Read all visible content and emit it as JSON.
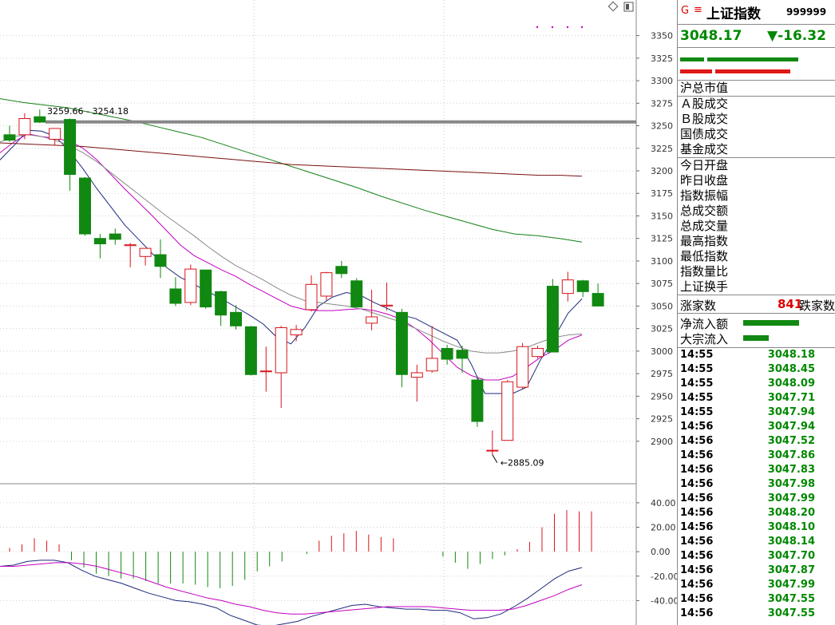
{
  "chart_data": [
    {
      "type": "candlestick",
      "ylim": [
        2860,
        3370
      ],
      "yticks": [
        2900,
        2925,
        2950,
        2975,
        3000,
        3025,
        3050,
        3075,
        3100,
        3125,
        3150,
        3175,
        3200,
        3225,
        3250,
        3275,
        3300,
        3325,
        3350
      ],
      "candles": [
        {
          "o": 3240,
          "h": 3250,
          "l": 3232,
          "c": 3234
        },
        {
          "o": 3240,
          "h": 3264,
          "l": 3235,
          "c": 3258
        },
        {
          "o": 3260,
          "h": 3268,
          "l": 3253,
          "c": 3254
        },
        {
          "o": 3235,
          "h": 3245,
          "l": 3228,
          "c": 3247
        },
        {
          "o": 3257,
          "h": 3258,
          "l": 3178,
          "c": 3196
        },
        {
          "o": 3192,
          "h": 3193,
          "l": 3128,
          "c": 3130
        },
        {
          "o": 3125,
          "h": 3130,
          "l": 3103,
          "c": 3119
        },
        {
          "o": 3130,
          "h": 3136,
          "l": 3118,
          "c": 3124
        },
        {
          "o": 3117,
          "h": 3120,
          "l": 3093,
          "c": 3118
        },
        {
          "o": 3105,
          "h": 3109,
          "l": 3095,
          "c": 3114
        },
        {
          "o": 3107,
          "h": 3124,
          "l": 3081,
          "c": 3094
        },
        {
          "o": 3069,
          "h": 3082,
          "l": 3050,
          "c": 3053
        },
        {
          "o": 3054,
          "h": 3096,
          "l": 3051,
          "c": 3091
        },
        {
          "o": 3090,
          "h": 3090,
          "l": 3047,
          "c": 3049
        },
        {
          "o": 3066,
          "h": 3067,
          "l": 3028,
          "c": 3040
        },
        {
          "o": 3043,
          "h": 3051,
          "l": 3024,
          "c": 3028
        },
        {
          "o": 3027,
          "h": 3028,
          "l": 2973,
          "c": 2974
        },
        {
          "o": 2978,
          "h": 3005,
          "l": 2955,
          "c": 2978
        },
        {
          "o": 2976,
          "h": 3028,
          "l": 2937,
          "c": 3026
        },
        {
          "o": 3018,
          "h": 3029,
          "l": 3011,
          "c": 3024
        },
        {
          "o": 3046,
          "h": 3084,
          "l": 3044,
          "c": 3074
        },
        {
          "o": 3061,
          "h": 3088,
          "l": 3056,
          "c": 3087
        },
        {
          "o": 3094,
          "h": 3100,
          "l": 3081,
          "c": 3086
        },
        {
          "o": 3078,
          "h": 3081,
          "l": 3049,
          "c": 3049
        },
        {
          "o": 3031,
          "h": 3068,
          "l": 3023,
          "c": 3038
        },
        {
          "o": 3050,
          "h": 3076,
          "l": 3045,
          "c": 3051
        },
        {
          "o": 3043,
          "h": 3047,
          "l": 2960,
          "c": 2974
        },
        {
          "o": 2971,
          "h": 2985,
          "l": 2944,
          "c": 2976
        },
        {
          "o": 2978,
          "h": 3028,
          "l": 2976,
          "c": 2992
        },
        {
          "o": 3003,
          "h": 3007,
          "l": 2985,
          "c": 2991
        },
        {
          "o": 3001,
          "h": 3006,
          "l": 2976,
          "c": 2992
        },
        {
          "o": 2968,
          "h": 2972,
          "l": 2916,
          "c": 2922
        },
        {
          "o": 2890,
          "h": 2912,
          "l": 2885.09,
          "c": 2890
        },
        {
          "o": 2901,
          "h": 2968,
          "l": 2901,
          "c": 2966
        },
        {
          "o": 2960,
          "h": 3009,
          "l": 2958,
          "c": 3005
        },
        {
          "o": 2994,
          "h": 3006,
          "l": 2992,
          "c": 3003
        },
        {
          "o": 3072,
          "h": 3080,
          "l": 2999,
          "c": 2999
        },
        {
          "o": 3064,
          "h": 3088,
          "l": 3055,
          "c": 3079
        },
        {
          "o": 3078,
          "h": 3079,
          "l": 3060,
          "c": 3066
        },
        {
          "o": 3064,
          "h": 3075,
          "l": 3050,
          "c": 3050
        }
      ],
      "ma_lines": [
        {
          "color": "#1c2a7c",
          "values": [
            3212,
            3228,
            3245,
            3244,
            3238,
            3222,
            3202,
            3180,
            3160,
            3140,
            3124,
            3108,
            3093,
            3082,
            3074,
            3066,
            3058,
            3049,
            3040,
            3030,
            3015,
            3008,
            3026,
            3050,
            3060,
            3065,
            3062,
            3054,
            3047,
            3040,
            3036,
            3028,
            3020,
            3012,
            2986,
            2953,
            2953,
            2953,
            2960,
            2990,
            3015,
            3042,
            3058
          ]
        },
        {
          "color": "#c200c2",
          "values": [
            3220,
            3232,
            3241,
            3238,
            3236,
            3233,
            3225,
            3212,
            3196,
            3180,
            3165,
            3150,
            3134,
            3118,
            3106,
            3098,
            3090,
            3083,
            3074,
            3066,
            3058,
            3050,
            3046,
            3045,
            3045,
            3046,
            3047,
            3045,
            3041,
            3035,
            3025,
            3012,
            2997,
            2982,
            2973,
            2968,
            2968,
            2972,
            2982,
            2993,
            3001,
            3012,
            3018
          ]
        },
        {
          "color": "#8a8a8a",
          "values": [
            3232,
            3238,
            3240,
            3238,
            3234,
            3228,
            3220,
            3210,
            3198,
            3186,
            3174,
            3162,
            3150,
            3139,
            3128,
            3116,
            3105,
            3095,
            3087,
            3079,
            3070,
            3062,
            3056,
            3054,
            3052,
            3050,
            3047,
            3042,
            3037,
            3032,
            3025,
            3018,
            3011,
            3005,
            3000,
            2998,
            2998,
            3000,
            3004,
            3010,
            3015,
            3018,
            3019
          ]
        },
        {
          "color": "#138013",
          "values": [
            3280,
            3276,
            3273,
            3270,
            3265,
            3260,
            3255,
            3249,
            3243,
            3237,
            3229,
            3221,
            3213,
            3205,
            3197,
            3189,
            3181,
            3172,
            3164,
            3156,
            3149,
            3142,
            3135,
            3130,
            3128,
            3125,
            3121
          ]
        },
        {
          "color": "#7a1010",
          "values": [
            3231,
            3230,
            3229,
            3228,
            3227,
            3225,
            3223,
            3221,
            3219,
            3217,
            3215,
            3213,
            3211,
            3209,
            3207,
            3206,
            3205,
            3204,
            3203,
            3202,
            3201,
            3200,
            3199,
            3198,
            3197,
            3196,
            3195,
            3195,
            3194
          ]
        }
      ],
      "hline": 3254.18,
      "annot_high": "3259.66 - 3254.18",
      "annot_low": "2885.09"
    },
    {
      "type": "bar",
      "ylim": [
        -60,
        53
      ],
      "yticks": [
        "40.00",
        "20.00",
        "0.00",
        "-20.00",
        "-40.00"
      ],
      "values": [
        3,
        6,
        11,
        9,
        6,
        -7,
        -13,
        -18,
        -20,
        -22,
        -22,
        -24,
        -26,
        -26,
        -26,
        -27,
        -29,
        -30,
        -28,
        -23,
        -16,
        -12,
        -8,
        0,
        -2,
        9,
        13,
        15,
        17,
        14,
        12,
        11,
        0,
        0,
        0,
        -4,
        -9,
        -14,
        -10,
        -6,
        -3,
        2,
        8,
        20,
        31,
        34,
        33,
        33
      ],
      "dif": [
        -12,
        -11,
        -8,
        -7,
        -7,
        -9,
        -15,
        -20,
        -23,
        -26,
        -30,
        -34,
        -37,
        -40,
        -41,
        -43,
        -46,
        -52,
        -56,
        -60,
        -61,
        -59,
        -57,
        -53,
        -50,
        -47,
        -44,
        -43,
        -45,
        -46,
        -47,
        -47,
        -48,
        -48,
        -50,
        -55,
        -54,
        -51,
        -45,
        -38,
        -30,
        -22,
        -16,
        -13
      ],
      "dea": [
        -12,
        -12,
        -11,
        -10,
        -9,
        -9,
        -10,
        -12,
        -15,
        -18,
        -21,
        -25,
        -29,
        -32,
        -35,
        -38,
        -40,
        -43,
        -45,
        -48,
        -50,
        -51,
        -51,
        -50,
        -49,
        -48,
        -47,
        -46,
        -45,
        -45,
        -45,
        -45,
        -46,
        -47,
        -48,
        -48,
        -48,
        -47,
        -44,
        -40,
        -36,
        -31,
        -27
      ]
    }
  ],
  "panel": {
    "g_mark": "G",
    "menu_glyph": "≡",
    "name": "上证指数",
    "code": "999999",
    "price": "3048.17",
    "change": "▼-16.32",
    "section1": [
      "沪总市值"
    ],
    "section2": [
      "Ａ股成交",
      "Ｂ股成交",
      "国债成交",
      "基金成交"
    ],
    "section3": [
      "今日开盘",
      "昨日收盘",
      "指数振幅",
      "总成交额",
      "总成交量",
      "最高指数",
      "最低指数",
      "指数量比",
      "上证换手"
    ],
    "up_label": "涨家数",
    "up_count": "841",
    "down_label": "跌家数",
    "flow1": "净流入额",
    "flow2": "大宗流入",
    "ticks": [
      {
        "t": "14:55",
        "v": "3048.18"
      },
      {
        "t": "14:55",
        "v": "3048.45"
      },
      {
        "t": "14:55",
        "v": "3048.09"
      },
      {
        "t": "14:55",
        "v": "3047.71"
      },
      {
        "t": "14:55",
        "v": "3047.94"
      },
      {
        "t": "14:56",
        "v": "3047.94"
      },
      {
        "t": "14:56",
        "v": "3047.52"
      },
      {
        "t": "14:56",
        "v": "3047.86"
      },
      {
        "t": "14:56",
        "v": "3047.83"
      },
      {
        "t": "14:56",
        "v": "3047.98"
      },
      {
        "t": "14:56",
        "v": "3047.99"
      },
      {
        "t": "14:56",
        "v": "3048.20"
      },
      {
        "t": "14:56",
        "v": "3048.10"
      },
      {
        "t": "14:56",
        "v": "3048.14"
      },
      {
        "t": "14:56",
        "v": "3047.70"
      },
      {
        "t": "14:56",
        "v": "3047.87"
      },
      {
        "t": "14:56",
        "v": "3047.99"
      },
      {
        "t": "14:56",
        "v": "3047.55"
      },
      {
        "t": "14:56",
        "v": "3047.55"
      }
    ]
  },
  "colors": {
    "up": "#d8141c",
    "down": "#118811",
    "accent": "#d00000"
  }
}
